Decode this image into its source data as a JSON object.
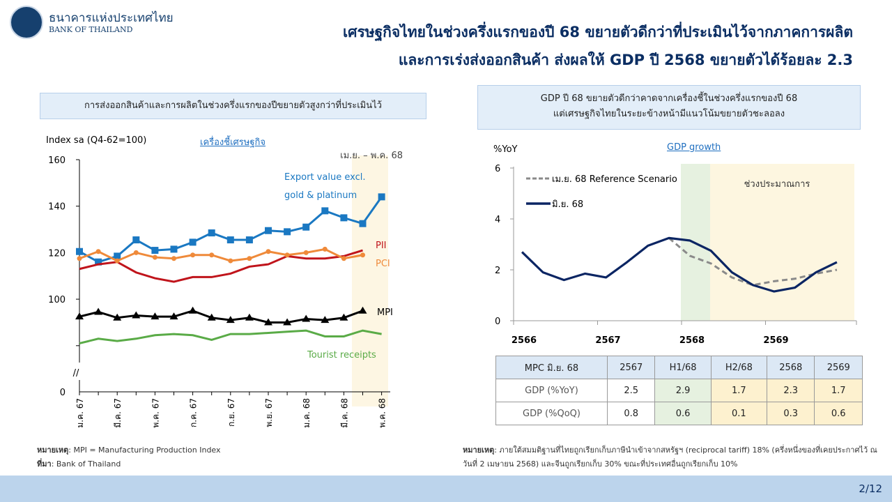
{
  "header": {
    "org_th": "ธนาคารแห่งประเทศไทย",
    "org_en": "BANK OF THAILAND",
    "title_line1": "เศรษฐกิจไทยในช่วงครึ่งแรกของปี 68 ขยายตัวดีกว่าที่ประเมินไว้จากภาคการผลิต",
    "title_line2": "และการเร่งส่งออกสินค้า ส่งผลให้ GDP ปี 2568 ขยายตัวได้ร้อยละ 2.3"
  },
  "left": {
    "box": "การส่งออกสินค้าและการผลิตในช่วงครึ่งแรกของปีขยายตัวสูงกว่าที่ประเมินไว้",
    "link": "เครื่องชี้เศรษฐกิจ",
    "note_label": "หมายเหตุ",
    "note": ": MPI = Manufacturing Production Index",
    "source_label": "ที่มา",
    "source": ": Bank of Thailand"
  },
  "right": {
    "box_line1": "GDP ปี 68 ขยายตัวดีกว่าคาดจากเครื่องชี้ในช่วงครึ่งแรกของปี 68",
    "box_line2": "แต่เศรษฐกิจไทยในระยะข้างหน้ามีแนวโน้มขยายตัวชะลอลง",
    "link": "GDP growth",
    "note_label": "หมายเหตุ",
    "note": ": ภายใต้สมมติฐานที่ไทยถูกเรียกเก็บภาษีนำเข้าจากสหรัฐฯ (reciprocal tariff) 18% (ครึ่งหนึ่งของที่เคยประกาศไว้ ณ วันที่ 2 เมษายน 2568) และจีนถูกเรียกเก็บ 30% ขณะที่ประเทศอื่นถูกเรียกเก็บ 10%"
  },
  "table": {
    "headers": [
      "MPC มิ.ย. 68",
      "2567",
      "H1/68",
      "H2/68",
      "2568",
      "2569"
    ],
    "rows": [
      [
        "GDP (%YoY)",
        "2.5",
        "2.9",
        "1.7",
        "2.3",
        "1.7"
      ],
      [
        "GDP (%QoQ)",
        "0.8",
        "0.6",
        "0.1",
        "0.3",
        "0.6"
      ]
    ]
  },
  "page": "2/12",
  "chart_data": [
    {
      "type": "line",
      "ylabel": "Index sa (Q4-62=100)",
      "annotation": "เม.ย. – พ.ค. 68",
      "ylim": [
        0,
        160
      ],
      "yticks": [
        "160",
        "140",
        "120",
        "100",
        "0"
      ],
      "xticks": [
        "ม.ค. 67",
        "มี.ค. 67",
        "พ.ค. 67",
        "ก.ค. 67",
        "ก.ย. 67",
        "พ.ย. 67",
        "ม.ค. 68",
        "มี.ค. 68",
        "พ.ค. 68"
      ],
      "series": [
        {
          "name": "Export value excl. gold & platinum",
          "label_line1": "Export value excl.",
          "label_line2": "gold & platinum",
          "color": "#1a78c2",
          "marker": "square",
          "values": [
            120.5,
            116,
            118.5,
            125.5,
            121,
            121.5,
            124.5,
            128.5,
            125.5,
            125.5,
            129.5,
            129,
            131,
            138,
            135,
            132.5,
            144
          ]
        },
        {
          "name": "PII",
          "color": "#c0141b",
          "marker": "none",
          "values": [
            113,
            115,
            116,
            111.5,
            109,
            107.5,
            109.5,
            109.5,
            111,
            114,
            115,
            118.5,
            117.5,
            117.5,
            118.5,
            121
          ]
        },
        {
          "name": "PCI",
          "color": "#ef8a3a",
          "marker": "circle",
          "values": [
            117.5,
            120.5,
            116.5,
            120,
            118,
            117.5,
            119,
            119,
            116.5,
            117.5,
            120.5,
            119,
            120,
            121.5,
            117.5,
            119
          ]
        },
        {
          "name": "MPI",
          "color": "#000000",
          "marker": "triangle",
          "values": [
            92.5,
            94.5,
            92,
            93,
            92.5,
            92.5,
            95,
            92,
            91,
            92,
            90,
            90,
            91.5,
            91,
            92,
            95
          ]
        },
        {
          "name": "Tourist receipts",
          "color": "#5aab47",
          "marker": "none",
          "values": [
            81,
            83,
            82,
            83,
            84.5,
            85,
            84.5,
            82.5,
            85,
            85,
            85.5,
            86,
            86.5,
            84,
            84,
            86.5,
            85
          ]
        }
      ]
    },
    {
      "type": "line",
      "ylabel": "%YoY",
      "ylim": [
        0,
        6
      ],
      "yticks": [
        "6",
        "4",
        "2",
        "0"
      ],
      "xticks": [
        "2566",
        "2567",
        "2568",
        "2569"
      ],
      "shade_label": "ช่วงประมาณการ",
      "series": [
        {
          "name": "มิ.ย. 68",
          "color": "#0b2563",
          "dashed": false,
          "start": 0,
          "values": [
            2.7,
            1.9,
            1.6,
            1.85,
            1.7,
            2.3,
            2.95,
            3.25,
            3.15,
            2.75,
            1.9,
            1.4,
            1.15,
            1.3,
            1.9,
            2.3
          ]
        },
        {
          "name": "เม.ย. 68 Reference Scenario",
          "color": "#8a8a8a",
          "dashed": true,
          "start": 7,
          "values": [
            3.25,
            2.55,
            2.25,
            1.7,
            1.4,
            1.55,
            1.65,
            1.85,
            2.0
          ]
        }
      ]
    }
  ]
}
